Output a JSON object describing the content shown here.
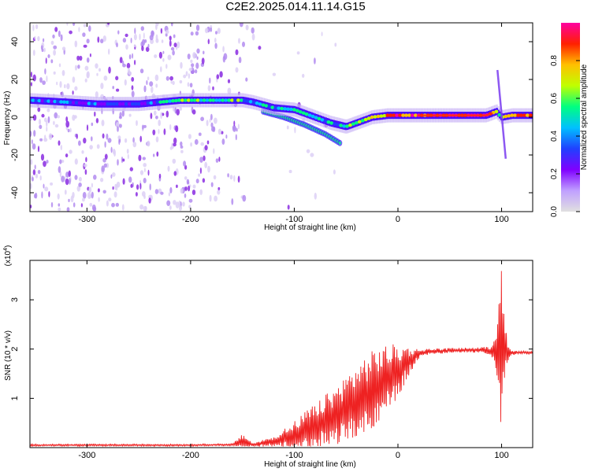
{
  "title": "C2E2.2025.014.11.14.G15",
  "colors": {
    "rainbow": [
      "#e0e0e0",
      "#c0a0ff",
      "#8000ff",
      "#2040ff",
      "#00c0ff",
      "#00ff80",
      "#c0ff00",
      "#ffc000",
      "#ff2000",
      "#ff00a0"
    ],
    "snr_line": "#ee2222",
    "axis": "#000000"
  },
  "chart_data": [
    {
      "type": "heatmap",
      "title": "",
      "xlabel": "Height of straight line (km)",
      "ylabel": "Frequency (Hz)",
      "xlim": [
        -355,
        130
      ],
      "ylim": [
        -50,
        50
      ],
      "xticks": [
        -300,
        -200,
        -100,
        0,
        100
      ],
      "yticks": [
        -40,
        -20,
        0,
        20,
        40
      ],
      "colorbar": {
        "label": "Normalized spectral amplitude",
        "ticks": [
          "0.0",
          "0.2",
          "0.4",
          "0.6",
          "0.8"
        ],
        "range": [
          0,
          1
        ]
      },
      "ridge": {
        "x": [
          -355,
          -320,
          -290,
          -250,
          -210,
          -180,
          -150,
          -140,
          -120,
          -100,
          -80,
          -65,
          -50,
          -40,
          -25,
          -10,
          0,
          20,
          50,
          85,
          95,
          100,
          110,
          130
        ],
        "frequency": [
          9,
          8,
          7,
          7,
          9,
          9,
          9,
          8,
          5,
          4,
          0,
          -3,
          -5,
          -3,
          0,
          1,
          1,
          1,
          1,
          1,
          3,
          0,
          1,
          1
        ],
        "amplitude": [
          0.35,
          0.35,
          0.3,
          0.3,
          0.55,
          0.55,
          0.5,
          0.45,
          0.5,
          0.5,
          0.45,
          0.45,
          0.5,
          0.6,
          0.75,
          0.8,
          0.85,
          0.9,
          0.95,
          0.95,
          0.7,
          0.6,
          0.8,
          0.85
        ]
      },
      "secondary_branch": {
        "x": [
          -130,
          -110,
          -90,
          -70,
          -55
        ],
        "frequency": [
          3,
          0,
          -4,
          -9,
          -14
        ]
      },
      "spike": {
        "x": [
          96,
          104
        ],
        "frequency": [
          25,
          -22
        ]
      }
    },
    {
      "type": "line",
      "title": "",
      "xlabel": "Height of straight line (km)",
      "ylabel": "SNR (10 * v/v)",
      "scale_label": "(x10",
      "scale_exponent": "4",
      "scale_suffix": ")",
      "xlim": [
        -355,
        130
      ],
      "ylim": [
        0,
        3.8
      ],
      "xticks": [
        -300,
        -200,
        -100,
        0,
        100
      ],
      "yticks": [
        1,
        2,
        3
      ],
      "series": [
        {
          "envelope_x": [
            -355,
            -200,
            -160,
            -150,
            -140,
            -120,
            -100,
            -80,
            -60,
            -40,
            -20,
            -10,
            0,
            10,
            20,
            30,
            50,
            70,
            90,
            95,
            98,
            100,
            103,
            108,
            115,
            130
          ],
          "envelope_y": [
            0.05,
            0.05,
            0.06,
            0.12,
            0.06,
            0.12,
            0.25,
            0.45,
            0.65,
            0.95,
            1.25,
            1.4,
            1.55,
            1.75,
            1.9,
            1.95,
            1.97,
            1.98,
            1.97,
            2.0,
            2.1,
            2.0,
            1.95,
            1.93,
            1.93,
            1.93
          ],
          "noise_y": [
            0.02,
            0.02,
            0.02,
            0.15,
            0.03,
            0.12,
            0.3,
            0.45,
            0.6,
            0.75,
            0.8,
            0.7,
            0.55,
            0.3,
            0.1,
            0.06,
            0.05,
            0.05,
            0.08,
            0.5,
            1.8,
            1.6,
            0.6,
            0.08,
            0.03,
            0.03
          ]
        }
      ]
    }
  ]
}
